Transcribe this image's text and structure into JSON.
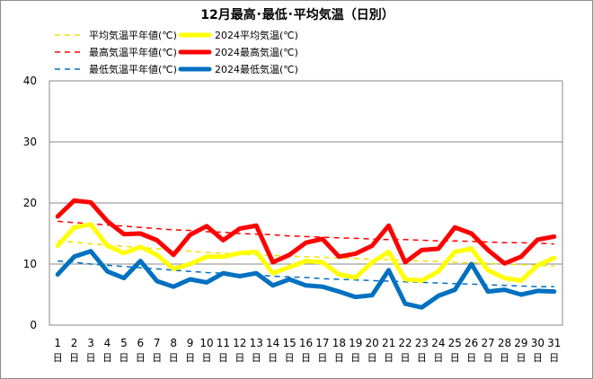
{
  "chart_data": {
    "type": "line",
    "title": "12月最高･最低･平均気温（日別）",
    "xlabel": "",
    "ylabel": "",
    "ylim": [
      0,
      40
    ],
    "yticks": [
      "0",
      "10",
      "20",
      "30",
      "40"
    ],
    "grid": true,
    "legend_position": "top-left",
    "day_suffix": "日",
    "categories": [
      "1",
      "2",
      "3",
      "4",
      "5",
      "6",
      "7",
      "8",
      "9",
      "10",
      "11",
      "12",
      "13",
      "14",
      "15",
      "16",
      "17",
      "18",
      "19",
      "20",
      "21",
      "22",
      "23",
      "24",
      "25",
      "26",
      "27",
      "28",
      "29",
      "30",
      "31"
    ],
    "series": [
      {
        "name": "平均気温平年値(℃)",
        "style": "dashed",
        "color": "#f0e000",
        "values": [
          13.8,
          13.6,
          13.3,
          13.1,
          12.9,
          12.7,
          12.5,
          12.3,
          12.1,
          11.9,
          11.8,
          11.6,
          11.5,
          11.4,
          11.3,
          11.2,
          11.1,
          11.0,
          10.9,
          10.8,
          10.7,
          10.6,
          10.5,
          10.4,
          10.3,
          10.2,
          10.1,
          10.0,
          9.9,
          9.8,
          9.7
        ]
      },
      {
        "name": "2024平均気温(℃)",
        "style": "solid",
        "color": "#ffff00",
        "values": [
          13.0,
          16.0,
          16.5,
          13.0,
          11.8,
          12.8,
          11.5,
          9.2,
          10.0,
          11.2,
          11.2,
          11.8,
          12.0,
          8.5,
          9.5,
          10.5,
          10.3,
          8.3,
          7.8,
          10.3,
          12.0,
          7.5,
          7.3,
          8.8,
          12.0,
          12.5,
          9.0,
          7.7,
          7.3,
          9.8,
          11.0
        ]
      },
      {
        "name": "最高気温平年値(℃)",
        "style": "dashed",
        "color": "#ff0000",
        "values": [
          17.0,
          16.8,
          16.6,
          16.4,
          16.2,
          16.0,
          15.8,
          15.6,
          15.5,
          15.3,
          15.2,
          15.0,
          14.9,
          14.8,
          14.6,
          14.5,
          14.4,
          14.3,
          14.2,
          14.1,
          14.0,
          14.0,
          13.9,
          13.8,
          13.8,
          13.7,
          13.6,
          13.5,
          13.5,
          13.4,
          13.3
        ]
      },
      {
        "name": "2024最高気温(℃)",
        "style": "solid",
        "color": "#ff0000",
        "values": [
          17.8,
          20.4,
          20.1,
          17.0,
          14.9,
          15.0,
          13.9,
          11.5,
          14.8,
          16.2,
          13.9,
          15.8,
          16.3,
          10.3,
          11.5,
          13.5,
          14.1,
          11.2,
          11.7,
          13.0,
          16.3,
          10.3,
          12.3,
          12.5,
          16.0,
          15.0,
          12.3,
          10.1,
          11.2,
          14.0,
          14.5
        ]
      },
      {
        "name": "最低気温平年値(℃)",
        "style": "dashed",
        "color": "#0070c0",
        "values": [
          10.5,
          10.3,
          10.0,
          9.8,
          9.6,
          9.4,
          9.2,
          9.0,
          8.8,
          8.6,
          8.5,
          8.3,
          8.2,
          8.0,
          7.9,
          7.8,
          7.6,
          7.5,
          7.4,
          7.3,
          7.2,
          7.1,
          7.0,
          6.9,
          6.8,
          6.7,
          6.6,
          6.5,
          6.4,
          6.3,
          6.3
        ]
      },
      {
        "name": "2024最低気温(℃)",
        "style": "solid",
        "color": "#0070c0",
        "values": [
          8.3,
          11.2,
          12.1,
          8.8,
          7.7,
          10.5,
          7.2,
          6.3,
          7.5,
          7.0,
          8.5,
          8.0,
          8.5,
          6.5,
          7.5,
          6.5,
          6.3,
          5.5,
          4.6,
          4.9,
          9.0,
          3.5,
          2.9,
          4.8,
          5.8,
          10.0,
          5.5,
          5.8,
          5.0,
          5.6,
          5.5
        ]
      }
    ]
  }
}
